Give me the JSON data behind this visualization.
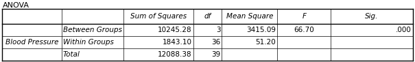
{
  "title": "ANOVA",
  "col_headers": [
    "Sum of Squares",
    "df",
    "Mean Square",
    "F",
    "Sig."
  ],
  "row_label_1": "Blood Pressure",
  "row_labels_2": [
    "Between Groups",
    "Within Groups",
    "Total"
  ],
  "col_sum_of_squares": [
    "10245.28",
    "1843.10",
    "12088.38"
  ],
  "col_df": [
    "3",
    "36",
    "39"
  ],
  "col_mean_square": [
    "3415.09",
    "51.20",
    ""
  ],
  "col_f": [
    "66.70",
    "",
    ""
  ],
  "col_sig": [
    ".000",
    "",
    ""
  ],
  "bg_color": "#ffffff",
  "border_color": "#000000",
  "text_color": "#000000",
  "title_fontsize": 8.0,
  "cell_fontsize": 7.5,
  "fig_width": 6.05,
  "fig_height": 0.91
}
